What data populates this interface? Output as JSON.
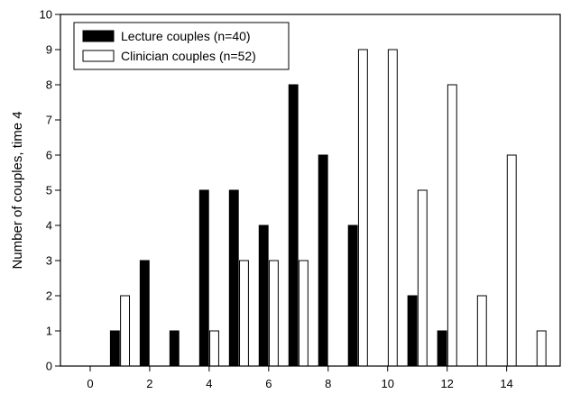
{
  "chart_data": {
    "type": "bar",
    "ylabel": "Number of couples, time 4",
    "xlabel": "",
    "xlim": [
      -1,
      15.8
    ],
    "ylim": [
      0,
      10
    ],
    "x_ticks": [
      0,
      2,
      4,
      6,
      8,
      10,
      12,
      14
    ],
    "y_ticks": [
      0,
      1,
      2,
      3,
      4,
      5,
      6,
      7,
      8,
      9,
      10
    ],
    "legend_position": "top-left",
    "series": [
      {
        "name": "Lecture couples (n=40)",
        "color": "#000000",
        "x": [
          1,
          2,
          3,
          4,
          5,
          6,
          7,
          8,
          9,
          10,
          11,
          12,
          13,
          14,
          15
        ],
        "values": [
          1,
          3,
          1,
          5,
          5,
          4,
          8,
          6,
          4,
          0,
          2,
          1,
          0,
          0,
          0
        ]
      },
      {
        "name": "Clinician couples (n=52)",
        "color": "#ffffff",
        "x": [
          1,
          2,
          3,
          4,
          5,
          6,
          7,
          8,
          9,
          10,
          11,
          12,
          13,
          14,
          15
        ],
        "values": [
          2,
          0,
          0,
          1,
          3,
          3,
          3,
          0,
          9,
          9,
          5,
          8,
          2,
          6,
          1
        ]
      }
    ]
  }
}
